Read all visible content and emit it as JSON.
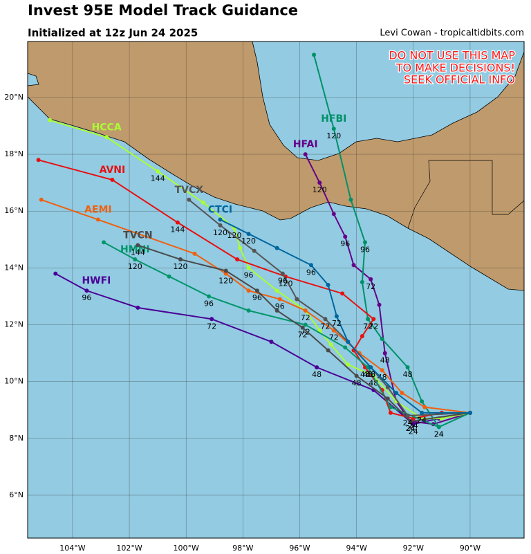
{
  "chart_data": {
    "type": "track-map",
    "title": "Invest 95E Model Track Guidance",
    "subtitle": "Initialized at 12z Jun 24 2025",
    "credit": "Levi Cowan - tropicaltidbits.com",
    "annotation": [
      "DO NOT USE THIS MAP",
      "TO MAKE DECISIONS!",
      "SEEK OFFICIAL INFO"
    ],
    "xlim": [
      -105.58,
      -88.1
    ],
    "ylim": [
      4.49,
      21.97
    ],
    "grid": true,
    "xticks": [
      {
        "value": -104,
        "label": "104°W"
      },
      {
        "value": -102,
        "label": "102°W"
      },
      {
        "value": -100,
        "label": "100°W"
      },
      {
        "value": -98,
        "label": "98°W"
      },
      {
        "value": -96,
        "label": "96°W"
      },
      {
        "value": -94,
        "label": "94°W"
      },
      {
        "value": -92,
        "label": "92°W"
      },
      {
        "value": -90,
        "label": "90°W"
      }
    ],
    "yticks": [
      {
        "value": 6,
        "label": "6°N"
      },
      {
        "value": 8,
        "label": "8°N"
      },
      {
        "value": 10,
        "label": "10°N"
      },
      {
        "value": 12,
        "label": "12°N"
      },
      {
        "value": 14,
        "label": "14°N"
      },
      {
        "value": 16,
        "label": "16°N"
      },
      {
        "value": 18,
        "label": "18°N"
      },
      {
        "value": 20,
        "label": "20°N"
      }
    ],
    "series": [
      {
        "name": "HWFI",
        "color": "#4b0096",
        "lon": [
          -90.0,
          -91.1,
          -92.0,
          -93.4,
          -95.4,
          -97.0,
          -99.1,
          -101.7,
          -103.5,
          -104.6
        ],
        "lat": [
          8.9,
          8.7,
          8.5,
          9.7,
          10.5,
          11.4,
          12.2,
          12.6,
          13.2,
          13.8
        ],
        "hour_labels": [
          null,
          null,
          24,
          null,
          48,
          null,
          72,
          null,
          96,
          null
        ]
      },
      {
        "name": "HFAI",
        "color": "#660088",
        "lon": [
          -90.0,
          -91.3,
          -92.1,
          -92.6,
          -93.0,
          -93.2,
          -93.5,
          -94.1,
          -94.4,
          -94.8,
          -95.3,
          -95.8
        ],
        "lat": [
          8.9,
          8.5,
          8.6,
          9.3,
          11.0,
          12.7,
          13.6,
          14.1,
          15.1,
          15.9,
          17.0,
          18.0
        ],
        "hour_labels": [
          null,
          null,
          24,
          null,
          48,
          null,
          72,
          null,
          96,
          null,
          120,
          null
        ]
      },
      {
        "name": "HFBI",
        "color": "#009068",
        "lon": [
          -90.0,
          -91.1,
          -91.7,
          -92.2,
          -93.1,
          -93.6,
          -93.8,
          -93.7,
          -94.2,
          -94.8,
          -95.5
        ],
        "lat": [
          8.9,
          8.4,
          9.3,
          10.5,
          11.5,
          12.2,
          13.5,
          14.9,
          16.4,
          18.9,
          21.5
        ],
        "hour_labels": [
          null,
          24,
          null,
          48,
          null,
          72,
          null,
          96,
          null,
          120,
          null
        ]
      },
      {
        "name": "HCCA",
        "color": "#aaff33",
        "lon": [
          -90.0,
          -91.0,
          -91.7,
          -92.6,
          -93.4,
          -94.3,
          -94.9,
          -95.3,
          -95.8,
          -96.8,
          -97.8,
          -98.1,
          -98.3,
          -99.4,
          -101.0,
          -102.8,
          -104.8
        ],
        "lat": [
          8.9,
          8.7,
          8.7,
          9.3,
          10.2,
          10.6,
          11.3,
          11.8,
          12.5,
          13.2,
          14.0,
          14.7,
          15.4,
          16.3,
          17.4,
          18.6,
          19.2
        ],
        "hour_labels": [
          null,
          null,
          null,
          null,
          48,
          null,
          null,
          null,
          72,
          null,
          96,
          null,
          120,
          null,
          144,
          null,
          null
        ]
      },
      {
        "name": "AVNI",
        "color": "#e81010",
        "lon": [
          -90.0,
          -91.0,
          -92.0,
          -92.8,
          -93.1,
          -93.7,
          -94.1,
          -93.8,
          -93.4,
          -94.5,
          -96.5,
          -98.2,
          -100.3,
          -102.6,
          -105.2
        ],
        "lat": [
          8.9,
          8.9,
          8.7,
          8.9,
          9.7,
          10.5,
          11.1,
          11.6,
          12.2,
          13.1,
          13.7,
          14.3,
          15.6,
          17.1,
          17.8
        ],
        "hour_labels": [
          null,
          null,
          24,
          null,
          null,
          48,
          null,
          null,
          72,
          null,
          120,
          null,
          144,
          null,
          null
        ]
      },
      {
        "name": "AEMI",
        "color": "#f06010",
        "lon": [
          -90.0,
          -91.6,
          -92.4,
          -93.1,
          -93.9,
          -94.8,
          -95.8,
          -96.7,
          -97.8,
          -98.6,
          -99.7,
          -103.1,
          -105.1
        ],
        "lat": [
          8.9,
          9.1,
          9.6,
          10.4,
          11.0,
          11.8,
          12.5,
          12.9,
          13.2,
          13.8,
          14.5,
          15.7,
          16.4
        ],
        "hour_labels": [
          null,
          null,
          null,
          48,
          null,
          72,
          null,
          96,
          null,
          120,
          null,
          null,
          null
        ]
      },
      {
        "name": "HMNI",
        "color": "#00966a",
        "lon": [
          -90.0,
          -91.1,
          -92.8,
          -93.6,
          -94.4,
          -95.8,
          -97.8,
          -99.2,
          -100.6,
          -101.8,
          -102.9
        ],
        "lat": [
          8.9,
          8.4,
          9.1,
          10.5,
          11.2,
          12.0,
          12.5,
          13.0,
          13.7,
          14.3,
          14.9
        ],
        "hour_labels": [
          null,
          24,
          null,
          48,
          null,
          72,
          null,
          96,
          null,
          120,
          null
        ]
      },
      {
        "name": "TVCN",
        "color": "#4a4a4a",
        "lon": [
          -90.0,
          -92.1,
          -92.9,
          -94.0,
          -95.0,
          -95.9,
          -96.8,
          -97.5,
          -98.6,
          -100.2,
          -101.7
        ],
        "lat": [
          8.9,
          8.6,
          9.4,
          10.2,
          11.1,
          11.9,
          12.5,
          13.2,
          13.9,
          14.3,
          14.8
        ],
        "hour_labels": [
          null,
          24,
          null,
          48,
          null,
          72,
          null,
          96,
          null,
          120,
          144
        ]
      },
      {
        "name": "TVCX",
        "color": "#555555",
        "lon": [
          -90.0,
          -92.2,
          -92.9,
          -93.5,
          -94.3,
          -95.1,
          -96.1,
          -96.6,
          -97.6,
          -98.8,
          -99.9
        ],
        "lat": [
          8.9,
          8.8,
          9.8,
          10.5,
          11.4,
          12.2,
          12.9,
          13.8,
          14.6,
          15.5,
          16.4
        ],
        "hour_labels": [
          null,
          24,
          null,
          48,
          null,
          72,
          null,
          96,
          null,
          120,
          null
        ]
      },
      {
        "name": "CTCI",
        "color": "#00669e",
        "lon": [
          -90.0,
          -91.7,
          -92.6,
          -93.5,
          -94.3,
          -94.7,
          -95.0,
          -95.6,
          -96.8,
          -97.8,
          -98.8
        ],
        "lat": [
          8.9,
          8.9,
          9.6,
          10.5,
          11.4,
          12.3,
          13.4,
          14.1,
          14.7,
          15.2,
          15.7
        ],
        "hour_labels": [
          null,
          24,
          null,
          48,
          null,
          72,
          null,
          96,
          null,
          120,
          null
        ]
      }
    ]
  }
}
